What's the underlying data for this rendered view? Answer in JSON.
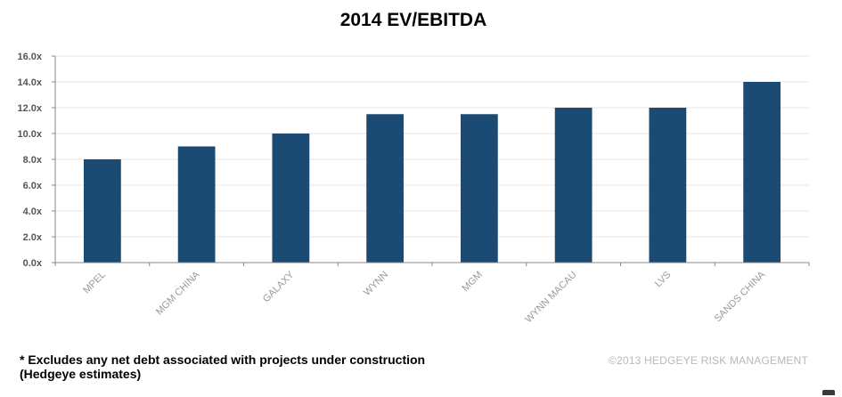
{
  "chart_data": {
    "type": "bar",
    "title": "2014 EV/EBITDA",
    "categories": [
      "MPEL",
      "MGM CHINA",
      "GALAXY",
      "WYNN",
      "MGM",
      "WYNN MACAU",
      "LVS",
      "SANDS CHINA"
    ],
    "values": [
      8.0,
      9.0,
      10.0,
      11.5,
      11.5,
      12.0,
      12.0,
      14.0
    ],
    "ylim": [
      0,
      16
    ],
    "y_ticks": [
      0,
      2,
      4,
      6,
      8,
      10,
      12,
      14,
      16
    ],
    "y_tick_labels": [
      "0.0x",
      "2.0x",
      "4.0x",
      "6.0x",
      "8.0x",
      "10.0x",
      "12.0x",
      "14.0x",
      "16.0x"
    ],
    "xlabel": "",
    "ylabel": "",
    "grid": true,
    "bar_color": "#1b4a72"
  },
  "footnote": {
    "line1": "* Excludes any net debt associated with projects under construction",
    "line2": "(Hedgeye estimates)"
  },
  "copyright": "©2013 HEDGEYE  RISK MANAGEMENT"
}
